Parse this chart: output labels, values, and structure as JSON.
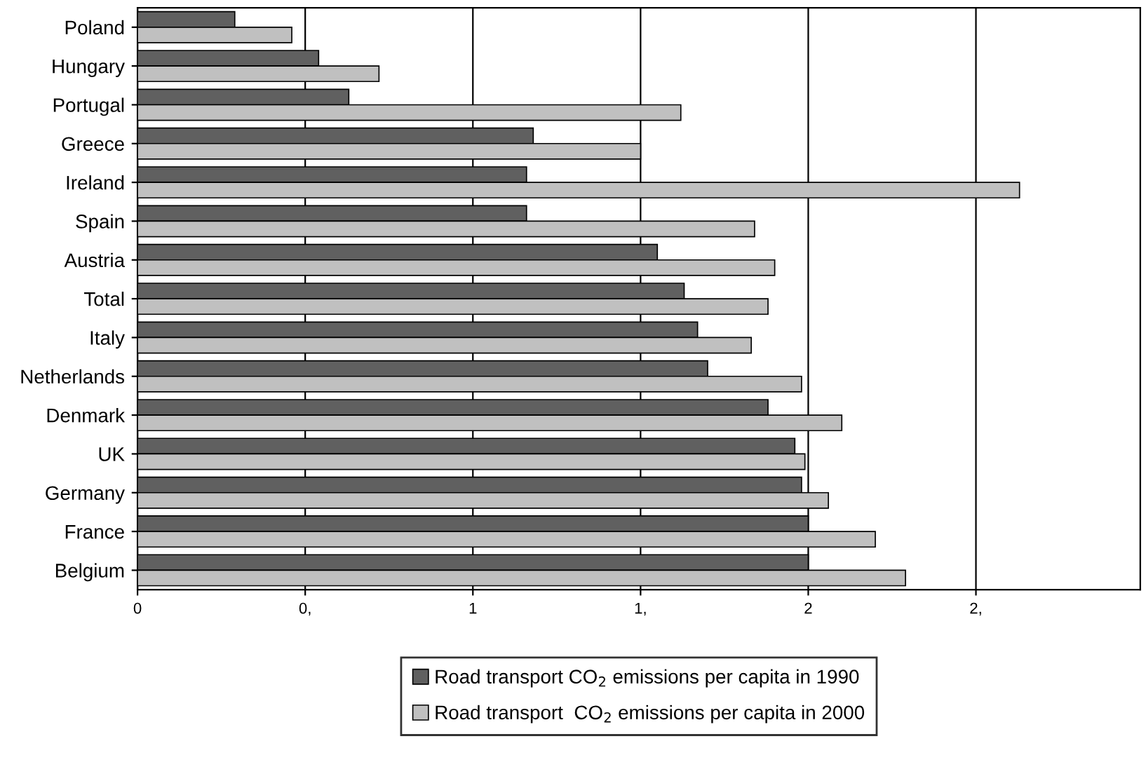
{
  "chart_data": {
    "type": "bar",
    "orientation": "horizontal",
    "categories": [
      "Poland",
      "Hungary",
      "Portugal",
      "Greece",
      "Ireland",
      "Spain",
      "Austria",
      "Total",
      "Italy",
      "Netherlands",
      "Denmark",
      "UK",
      "Germany",
      "France",
      "Belgium"
    ],
    "series": [
      {
        "name": "Road transport CO$_{2}$ emissions per capita in 1990",
        "color": "#606060",
        "values": [
          0.29,
          0.54,
          0.63,
          1.18,
          1.16,
          1.16,
          1.55,
          1.63,
          1.67,
          1.7,
          1.88,
          1.96,
          1.98,
          2.0,
          2.0
        ]
      },
      {
        "name": "Road transport  CO$_{2}$ emissions per capita in 2000",
        "color": "#c0c0c0",
        "values": [
          0.46,
          0.72,
          1.62,
          1.5,
          2.63,
          1.84,
          1.9,
          1.88,
          1.83,
          1.98,
          2.1,
          1.99,
          2.06,
          2.2,
          2.29
        ]
      }
    ],
    "xlim": [
      0,
      2.99
    ],
    "xticks": [
      0,
      {
        "value": 0.5,
        "label": "0,"
      },
      1,
      {
        "value": 1.5,
        "label": "1,"
      },
      2,
      {
        "value": 2.5,
        "label": "2,"
      }
    ],
    "grid": "x",
    "legend": "bottom"
  }
}
